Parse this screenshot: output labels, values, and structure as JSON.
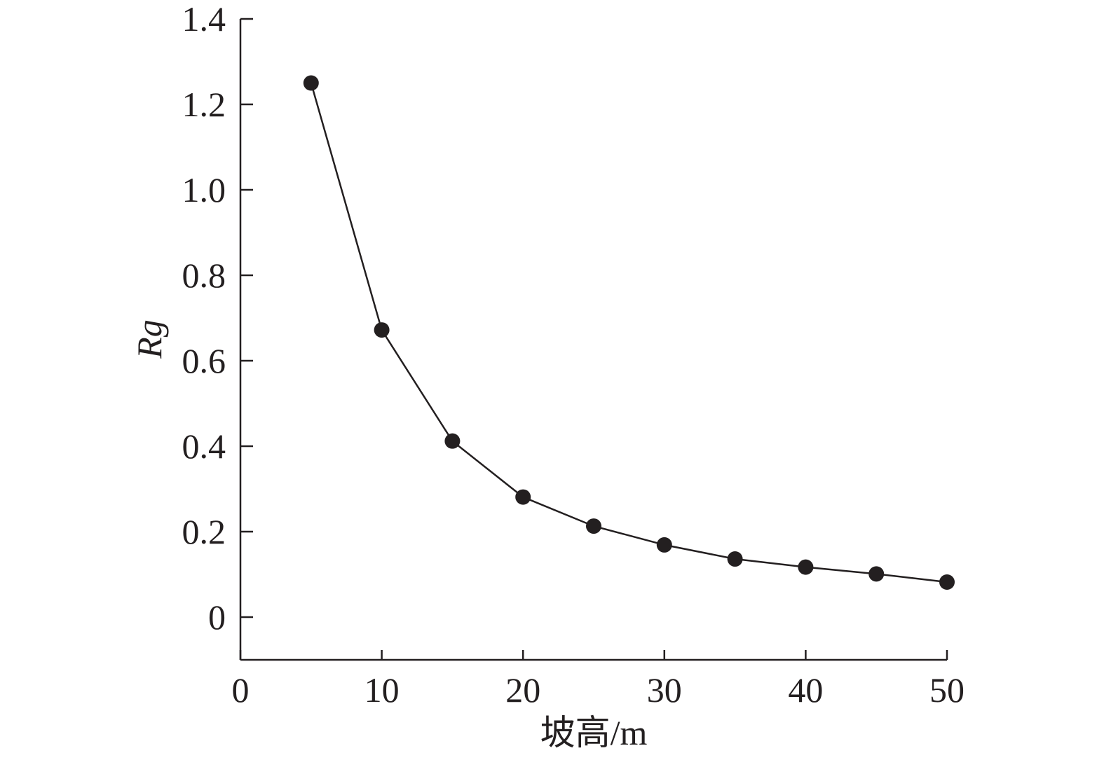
{
  "chart_data": {
    "type": "line",
    "xlabel": "坡高/m",
    "ylabel": "Rg",
    "xlim": [
      0,
      50
    ],
    "ylim": [
      -0.1,
      1.4
    ],
    "x_ticks": [
      0,
      10,
      20,
      30,
      40,
      50
    ],
    "x_tick_labels": [
      "0",
      "10",
      "20",
      "30",
      "40",
      "50"
    ],
    "y_ticks": [
      0,
      0.2,
      0.4,
      0.6,
      0.8,
      1.0,
      1.2,
      1.4
    ],
    "y_tick_labels": [
      "0",
      "0.2",
      "0.4",
      "0.6",
      "0.8",
      "1.0",
      "1.2",
      "1.4"
    ],
    "grid": false,
    "legend": "none",
    "series": [
      {
        "x": [
          5,
          10,
          15,
          20,
          25,
          30,
          35,
          40,
          45,
          50
        ],
        "values": [
          1.25,
          0.672,
          0.412,
          0.281,
          0.213,
          0.169,
          0.136,
          0.117,
          0.101,
          0.082
        ],
        "color": "#231f20"
      }
    ]
  }
}
